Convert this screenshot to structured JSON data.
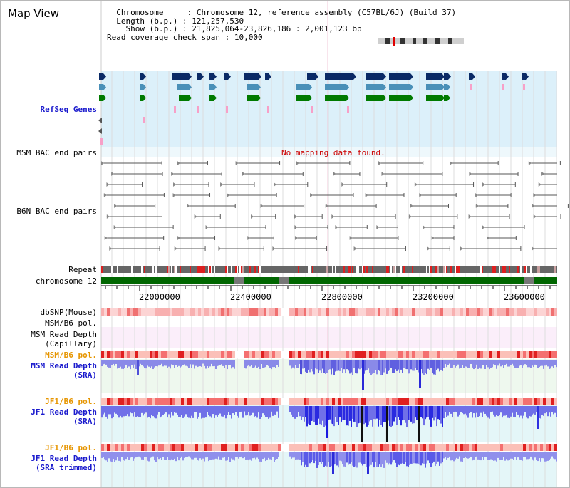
{
  "view": {
    "title": "Map View"
  },
  "info": {
    "chromosome_label": "Chromosome",
    "chromosome_value": "Chromosome 12, reference assembly (C57BL/6J) (Build 37)",
    "length_label": "Length (b.p.)",
    "length_value": "121,257,530",
    "show_label": "Show (b.p.)",
    "show_value": "21,825,064-23,826,186 : 2,001,123 bp",
    "span_label": "Read coverage check span",
    "span_value": "10,000"
  },
  "tracks": {
    "refseq": "RefSeq Genes",
    "msm_bac": "MSM BAC end pairs",
    "b6n_bac": "B6N BAC end pairs",
    "no_data": "No mapping data found.",
    "repeat": "Repeat",
    "chromosome": "chromosome 12",
    "dbsnp": "dbSNP(Mouse)",
    "msm_b6_pol_1": "MSM/B6 pol.",
    "msm_read_depth_cap_1": "MSM Read Depth",
    "msm_read_depth_cap_2": "(Capillary)",
    "msm_b6_pol_2": "MSM/B6 pol.",
    "msm_read_depth_sra_1": "MSM Read Depth",
    "msm_read_depth_sra_2": "(SRA)",
    "jf1_b6_pol_1": "JF1/B6 pol.",
    "jf1_read_depth_sra_1": "JF1 Read Depth",
    "jf1_read_depth_sra_2": "(SRA)",
    "jf1_b6_pol_2": "JF1/B6 pol.",
    "jf1_read_depth_trim_1": "JF1 Read Depth",
    "jf1_read_depth_trim_2": "(SRA trimmed)"
  },
  "axis": {
    "ticks": [
      "22000000",
      "22400000",
      "22800000",
      "23200000",
      "23600000"
    ]
  },
  "colors": {
    "refseq_bg": "#dcf0fa",
    "gene_dark": "#0a2a66",
    "gene_mid": "#4a90b8",
    "gene_green": "#007a00",
    "gene_pink": "#f7a0c8",
    "chrom_bar": "#006600",
    "depth_blue": "#3a3ae0",
    "pol_red": "#e02020"
  }
}
